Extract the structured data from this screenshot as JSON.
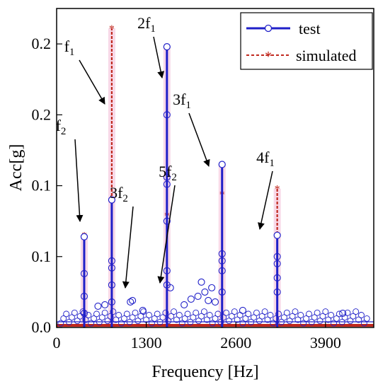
{
  "chart_data": {
    "type": "line",
    "xlabel": "Frequency [Hz]",
    "ylabel": "Acc[g]",
    "xlim": [
      0,
      4600
    ],
    "ylim": [
      0,
      0.225
    ],
    "x_ticks": [
      {
        "value": 0,
        "label": "0"
      },
      {
        "value": 1300,
        "label": "1300"
      },
      {
        "value": 2600,
        "label": "2600"
      },
      {
        "value": 3900,
        "label": "3900"
      }
    ],
    "y_ticks": [
      {
        "value": 0,
        "label": "0.0"
      },
      {
        "value": 0.05,
        "label": "0.1"
      },
      {
        "value": 0.1,
        "label": "0.1"
      },
      {
        "value": 0.15,
        "label": "0.2"
      },
      {
        "value": 0.2,
        "label": "0.2"
      }
    ],
    "legend": {
      "position": "top-right",
      "test_label": "test",
      "simulated_label": "simulated"
    },
    "colors": {
      "test": "#1f1fc8",
      "simulated": "#c0281e",
      "highlight": "#f6cce0"
    },
    "series": [
      {
        "name": "test",
        "peaks": [
          {
            "x": 400,
            "y": 0.064
          },
          {
            "x": 800,
            "y": 0.09
          },
          {
            "x": 1600,
            "y": 0.198
          },
          {
            "x": 2400,
            "y": 0.115
          },
          {
            "x": 3200,
            "y": 0.065
          }
        ],
        "extra_points": [
          {
            "x": 400,
            "y": 0.038
          },
          {
            "x": 400,
            "y": 0.022
          },
          {
            "x": 400,
            "y": 0.01
          },
          {
            "x": 800,
            "y": 0.047
          },
          {
            "x": 800,
            "y": 0.042
          },
          {
            "x": 800,
            "y": 0.03
          },
          {
            "x": 800,
            "y": 0.018
          },
          {
            "x": 1600,
            "y": 0.15
          },
          {
            "x": 1600,
            "y": 0.106
          },
          {
            "x": 1600,
            "y": 0.101
          },
          {
            "x": 1600,
            "y": 0.075
          },
          {
            "x": 1600,
            "y": 0.04
          },
          {
            "x": 1600,
            "y": 0.03
          },
          {
            "x": 2400,
            "y": 0.052
          },
          {
            "x": 2400,
            "y": 0.047
          },
          {
            "x": 2400,
            "y": 0.04
          },
          {
            "x": 2400,
            "y": 0.025
          },
          {
            "x": 3200,
            "y": 0.05
          },
          {
            "x": 3200,
            "y": 0.045
          },
          {
            "x": 3200,
            "y": 0.035
          },
          {
            "x": 3200,
            "y": 0.025
          },
          {
            "x": 1650,
            "y": 0.028
          },
          {
            "x": 1100,
            "y": 0.019
          },
          {
            "x": 1070,
            "y": 0.018
          },
          {
            "x": 1850,
            "y": 0.016
          },
          {
            "x": 1950,
            "y": 0.02
          },
          {
            "x": 2050,
            "y": 0.022
          },
          {
            "x": 2100,
            "y": 0.032
          },
          {
            "x": 2150,
            "y": 0.025
          },
          {
            "x": 2200,
            "y": 0.019
          },
          {
            "x": 2250,
            "y": 0.028
          },
          {
            "x": 2300,
            "y": 0.018
          },
          {
            "x": 600,
            "y": 0.015
          },
          {
            "x": 700,
            "y": 0.016
          },
          {
            "x": 1250,
            "y": 0.012
          },
          {
            "x": 2700,
            "y": 0.012
          },
          {
            "x": 4150,
            "y": 0.01
          }
        ]
      },
      {
        "name": "simulated",
        "peaks": [
          {
            "x": 400,
            "y": 0.065
          },
          {
            "x": 800,
            "y": 0.211
          },
          {
            "x": 1600,
            "y": 0.079
          },
          {
            "x": 2400,
            "y": 0.094
          },
          {
            "x": 3200,
            "y": 0.098
          }
        ]
      }
    ],
    "annotations": [
      {
        "base": "f",
        "sub": "1",
        "peak_x": 800,
        "peak_y": 0.155
      },
      {
        "base": "f",
        "sub": "2",
        "peak_x": 400,
        "peak_y": 0.067
      },
      {
        "base": "2f",
        "sub": "1",
        "peak_x": 1600,
        "peak_y": 0.173
      },
      {
        "base": "3f",
        "sub": "2",
        "peak_x": 1000,
        "peak_y": 0.02
      },
      {
        "base": "5f",
        "sub": "2",
        "peak_x": 1600,
        "peak_y": 0.027
      },
      {
        "base": "3f",
        "sub": "1",
        "peak_x": 2400,
        "peak_y": 0.113
      },
      {
        "base": "4f",
        "sub": "1",
        "peak_x": 3200,
        "peak_y": 0.067
      }
    ]
  }
}
